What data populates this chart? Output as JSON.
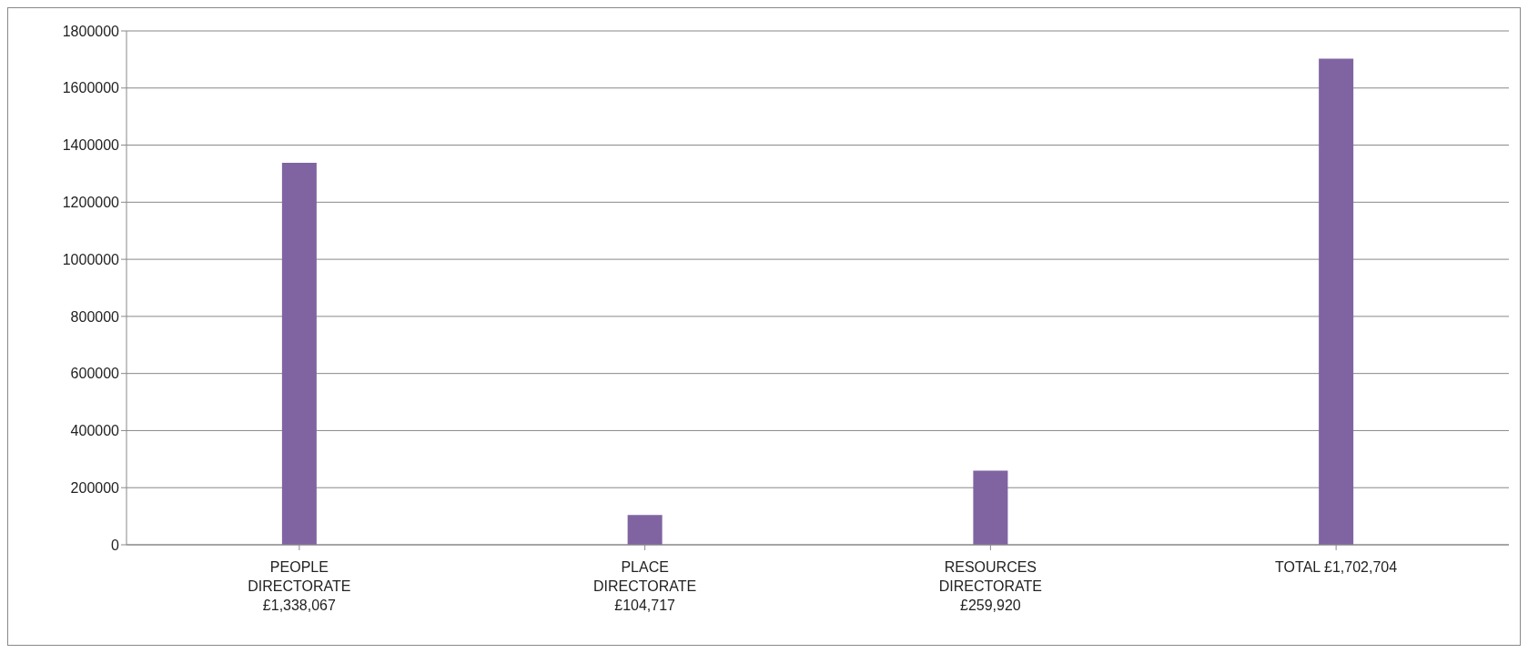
{
  "chart_data": {
    "type": "bar",
    "categories": [
      "PEOPLE\nDIRECTORATE\n£1,338,067",
      "PLACE\nDIRECTORATE\n£104,717",
      "RESOURCES\nDIRECTORATE\n£259,920",
      "TOTAL £1,702,704"
    ],
    "values": [
      1338067,
      104717,
      259920,
      1702704
    ],
    "color": "#8064a2",
    "ylim": [
      0,
      1800000
    ],
    "yticks": [
      0,
      200000,
      400000,
      600000,
      800000,
      1000000,
      1200000,
      1400000,
      1600000,
      1800000
    ],
    "grid": "y"
  }
}
